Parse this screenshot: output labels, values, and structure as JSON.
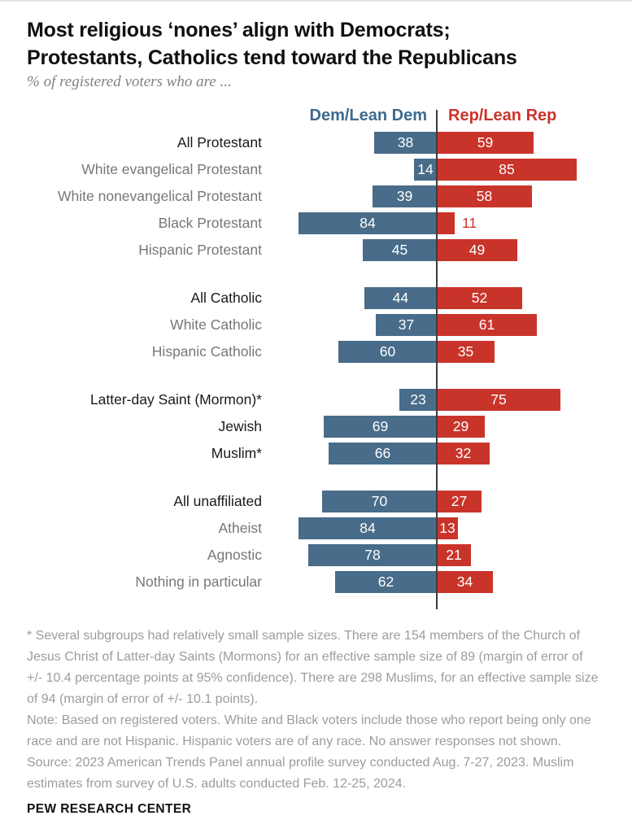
{
  "header": {
    "title_line1": "Most religious ‘nones’ align with Democrats;",
    "title_line2": "Protestants, Catholics tend toward the Republicans",
    "subtitle": "% of registered voters who are ..."
  },
  "legend": {
    "dem_label": "Dem/Lean Dem",
    "rep_label": "Rep/Lean Rep"
  },
  "colors": {
    "dem_bar": "#486c89",
    "rep_bar": "#c9342a",
    "dem_legend_text": "#3f6a8d",
    "rep_legend_text": "#c9342a",
    "emphasis_label": "#1a1a1a",
    "subgroup_label": "#777777"
  },
  "chart_data": {
    "type": "bar",
    "orientation": "horizontal-diverging",
    "unit": "percent",
    "title": "Most religious ‘nones’ align with Democrats; Protestants, Catholics tend toward the Republicans",
    "subtitle": "% of registered voters who are ...",
    "series_names": [
      "Dem/Lean Dem",
      "Rep/Lean Rep"
    ],
    "value_range": [
      0,
      100
    ],
    "legend_position": "top",
    "grid": false,
    "groups": [
      {
        "rows": [
          {
            "label": "All Protestant",
            "dem": 38,
            "rep": 59,
            "emphasis": true
          },
          {
            "label": "White evangelical Protestant",
            "dem": 14,
            "rep": 85,
            "emphasis": false
          },
          {
            "label": "White nonevangelical Protestant",
            "dem": 39,
            "rep": 58,
            "emphasis": false
          },
          {
            "label": "Black Protestant",
            "dem": 84,
            "rep": 11,
            "emphasis": false,
            "rep_value_outside": true
          },
          {
            "label": "Hispanic Protestant",
            "dem": 45,
            "rep": 49,
            "emphasis": false
          }
        ]
      },
      {
        "rows": [
          {
            "label": "All Catholic",
            "dem": 44,
            "rep": 52,
            "emphasis": true
          },
          {
            "label": "White Catholic",
            "dem": 37,
            "rep": 61,
            "emphasis": false
          },
          {
            "label": "Hispanic Catholic",
            "dem": 60,
            "rep": 35,
            "emphasis": false
          }
        ]
      },
      {
        "rows": [
          {
            "label": "Latter-day Saint (Mormon)*",
            "dem": 23,
            "rep": 75,
            "emphasis": true
          },
          {
            "label": "Jewish",
            "dem": 69,
            "rep": 29,
            "emphasis": true
          },
          {
            "label": "Muslim*",
            "dem": 66,
            "rep": 32,
            "emphasis": true
          }
        ]
      },
      {
        "rows": [
          {
            "label": "All unaffiliated",
            "dem": 70,
            "rep": 27,
            "emphasis": true
          },
          {
            "label": "Atheist",
            "dem": 84,
            "rep": 13,
            "emphasis": false
          },
          {
            "label": "Agnostic",
            "dem": 78,
            "rep": 21,
            "emphasis": false
          },
          {
            "label": "Nothing in particular",
            "dem": 62,
            "rep": 34,
            "emphasis": false
          }
        ]
      }
    ]
  },
  "footnotes": {
    "asterisk_note": "* Several subgroups had relatively small sample sizes. There are 154 members of the Church of Jesus Christ of Latter-day Saints (Mormons) for an effective sample size of 89 (margin of error of +/- 10.4 percentage points at 95% confidence). There are 298 Muslims, for an effective sample size of 94 (margin of error of +/- 10.1 points).",
    "method_note": "Note: Based on registered voters. White and Black voters include those who report being only one race and are not Hispanic. Hispanic voters are of any race. No answer responses not shown.",
    "source_note": "Source: 2023 American Trends Panel annual profile survey conducted Aug. 7-27, 2023. Muslim estimates from survey of U.S. adults conducted Feb. 12-25, 2024."
  },
  "branding": {
    "wordmark": "PEW RESEARCH CENTER"
  }
}
